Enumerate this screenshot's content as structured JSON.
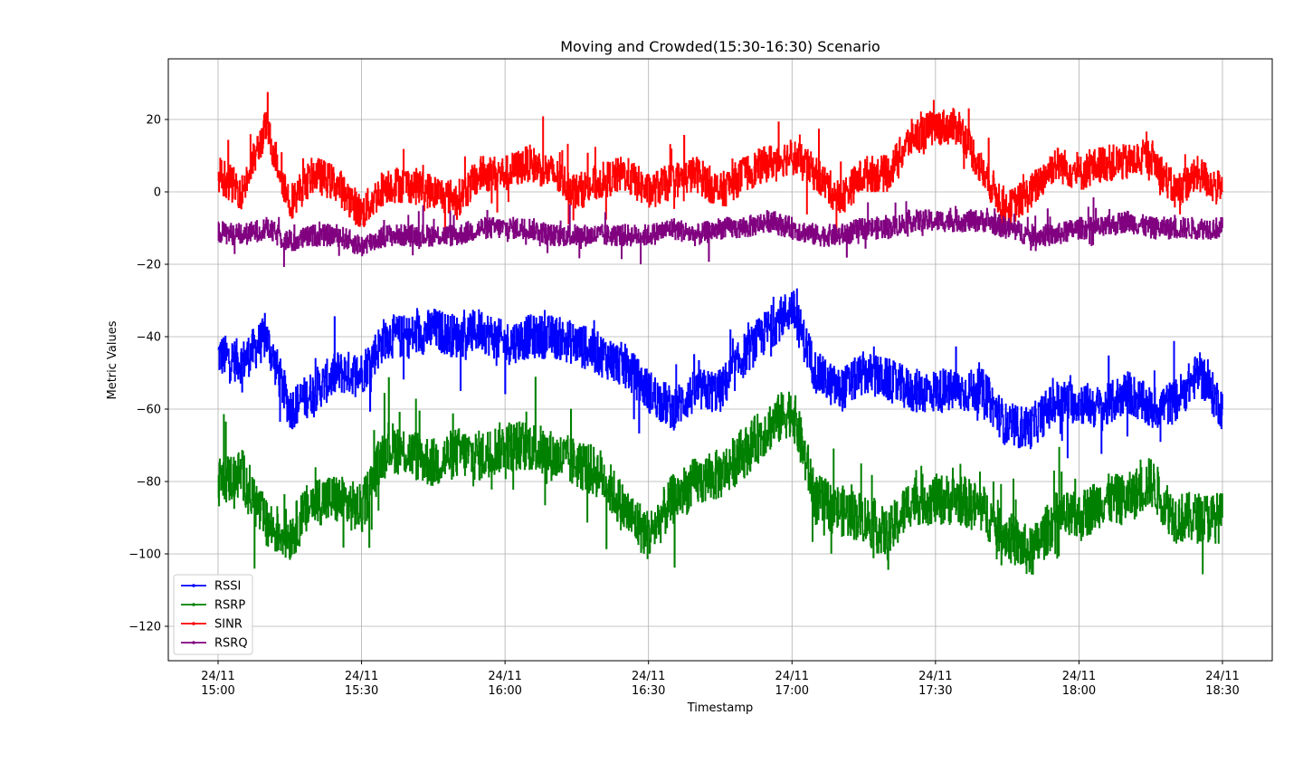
{
  "chart_data": {
    "type": "line",
    "title": "Moving and Crowded(15:30-16:30) Scenario",
    "xlabel": "Timestamp",
    "ylabel": "Metric Values",
    "xlim": [
      "24/11 15:00",
      "24/11 18:30"
    ],
    "ylim": [
      -130,
      37
    ],
    "grid": true,
    "legend_position": "lower-left",
    "x_ticks": [
      {
        "date": "24/11",
        "time": "15:00"
      },
      {
        "date": "24/11",
        "time": "15:30"
      },
      {
        "date": "24/11",
        "time": "16:00"
      },
      {
        "date": "24/11",
        "time": "16:30"
      },
      {
        "date": "24/11",
        "time": "17:00"
      },
      {
        "date": "24/11",
        "time": "17:30"
      },
      {
        "date": "24/11",
        "time": "18:00"
      },
      {
        "date": "24/11",
        "time": "18:30"
      }
    ],
    "y_ticks": [
      {
        "value": 20,
        "label": "20"
      },
      {
        "value": 0,
        "label": "0"
      },
      {
        "value": -20,
        "label": "−20"
      },
      {
        "value": -40,
        "label": "−40"
      },
      {
        "value": -60,
        "label": "−60"
      },
      {
        "value": -80,
        "label": "−80"
      },
      {
        "value": -100,
        "label": "−100"
      },
      {
        "value": -120,
        "label": "−120"
      }
    ],
    "x_times": [
      "15:00",
      "15:05",
      "15:10",
      "15:15",
      "15:20",
      "15:25",
      "15:30",
      "15:35",
      "15:40",
      "15:45",
      "15:50",
      "15:55",
      "16:00",
      "16:05",
      "16:10",
      "16:15",
      "16:20",
      "16:25",
      "16:30",
      "16:35",
      "16:40",
      "16:45",
      "16:50",
      "16:55",
      "17:00",
      "17:05",
      "17:10",
      "17:15",
      "17:20",
      "17:25",
      "17:30",
      "17:35",
      "17:40",
      "17:45",
      "17:50",
      "17:55",
      "18:00",
      "18:05",
      "18:10",
      "18:15",
      "18:20",
      "18:25",
      "18:30"
    ],
    "series": [
      {
        "name": "RSSI",
        "color": "#0000ff",
        "noise": 6,
        "values": [
          -45,
          -47,
          -40,
          -60,
          -55,
          -50,
          -50,
          -40,
          -40,
          -38,
          -40,
          -38,
          -42,
          -40,
          -40,
          -42,
          -45,
          -48,
          -55,
          -60,
          -55,
          -55,
          -45,
          -38,
          -32,
          -50,
          -55,
          -50,
          -52,
          -55,
          -55,
          -55,
          -55,
          -65,
          -65,
          -58,
          -58,
          -60,
          -55,
          -60,
          -58,
          -50,
          -60
        ]
      },
      {
        "name": "RSRP",
        "color": "#008000",
        "noise": 7,
        "values": [
          -80,
          -78,
          -92,
          -95,
          -85,
          -85,
          -88,
          -70,
          -72,
          -75,
          -72,
          -73,
          -70,
          -70,
          -73,
          -75,
          -78,
          -88,
          -95,
          -85,
          -80,
          -78,
          -72,
          -65,
          -60,
          -85,
          -88,
          -90,
          -95,
          -85,
          -85,
          -85,
          -88,
          -95,
          -100,
          -90,
          -90,
          -85,
          -85,
          -80,
          -90,
          -90,
          -90
        ]
      },
      {
        "name": "SINR",
        "color": "#ff0000",
        "noise": 5,
        "values": [
          5,
          0,
          18,
          -3,
          5,
          2,
          -6,
          2,
          2,
          0,
          -2,
          5,
          5,
          8,
          5,
          0,
          3,
          5,
          0,
          3,
          5,
          0,
          5,
          8,
          10,
          5,
          -2,
          5,
          5,
          15,
          18,
          18,
          5,
          -5,
          0,
          8,
          5,
          8,
          8,
          10,
          0,
          5,
          0
        ]
      },
      {
        "name": "RSRQ",
        "color": "#800080",
        "noise": 3,
        "values": [
          -11,
          -12,
          -10,
          -14,
          -12,
          -12,
          -15,
          -12,
          -12,
          -12,
          -12,
          -10,
          -10,
          -10,
          -12,
          -12,
          -12,
          -12,
          -12,
          -10,
          -12,
          -10,
          -10,
          -8,
          -10,
          -12,
          -12,
          -10,
          -10,
          -8,
          -8,
          -8,
          -8,
          -10,
          -12,
          -12,
          -10,
          -10,
          -8,
          -10,
          -10,
          -10,
          -10
        ]
      }
    ]
  }
}
